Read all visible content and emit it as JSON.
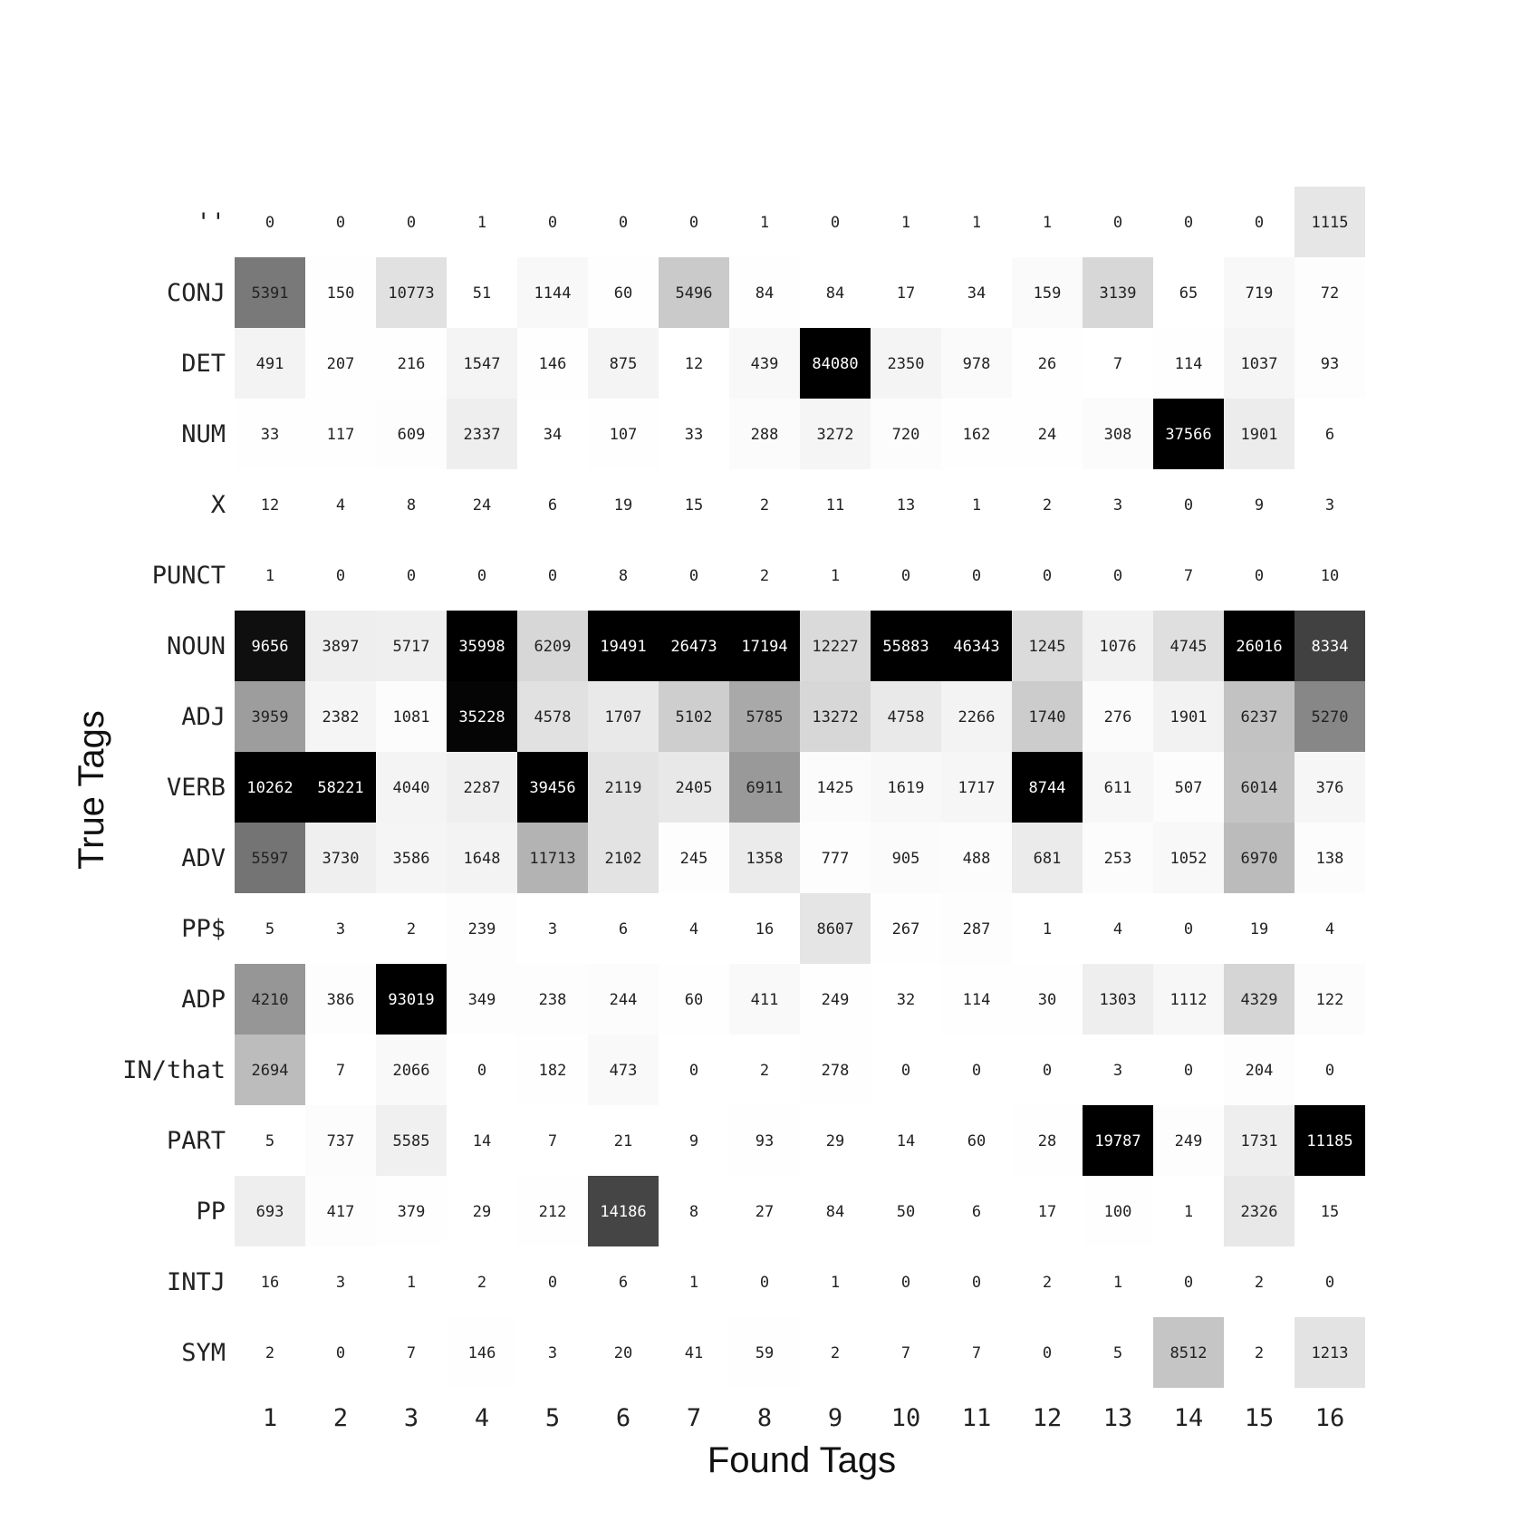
{
  "chart_data": {
    "type": "heatmap",
    "xlabel": "Found Tags",
    "ylabel": "True Tags",
    "x_categories": [
      "1",
      "2",
      "3",
      "4",
      "5",
      "6",
      "7",
      "8",
      "9",
      "10",
      "11",
      "12",
      "13",
      "14",
      "15",
      "16"
    ],
    "y_categories": [
      "''",
      "CONJ",
      "DET",
      "NUM",
      "X",
      "PUNCT",
      "NOUN",
      "ADJ",
      "VERB",
      "ADV",
      "PP$",
      "ADP",
      "IN/that",
      "PART",
      "PP",
      "INTJ",
      "SYM"
    ],
    "values": [
      [
        0,
        0,
        0,
        1,
        0,
        0,
        0,
        1,
        0,
        1,
        1,
        1,
        0,
        0,
        0,
        1115
      ],
      [
        5391,
        150,
        10773,
        51,
        1144,
        60,
        5496,
        84,
        84,
        17,
        34,
        159,
        3139,
        65,
        719,
        72
      ],
      [
        491,
        207,
        216,
        1547,
        146,
        875,
        12,
        439,
        84080,
        2350,
        978,
        26,
        7,
        114,
        1037,
        93
      ],
      [
        33,
        117,
        609,
        2337,
        34,
        107,
        33,
        288,
        3272,
        720,
        162,
        24,
        308,
        37566,
        1901,
        6
      ],
      [
        12,
        4,
        8,
        24,
        6,
        19,
        15,
        2,
        11,
        13,
        1,
        2,
        3,
        0,
        9,
        3
      ],
      [
        1,
        0,
        0,
        0,
        0,
        8,
        0,
        2,
        1,
        0,
        0,
        0,
        0,
        7,
        0,
        10
      ],
      [
        9656,
        3897,
        5717,
        35998,
        6209,
        19491,
        26473,
        17194,
        12227,
        55883,
        46343,
        1245,
        1076,
        4745,
        26016,
        8334
      ],
      [
        3959,
        2382,
        1081,
        35228,
        4578,
        1707,
        5102,
        5785,
        13272,
        4758,
        2266,
        1740,
        276,
        1901,
        6237,
        5270
      ],
      [
        10262,
        58221,
        4040,
        2287,
        39456,
        2119,
        2405,
        6911,
        1425,
        1619,
        1717,
        8744,
        611,
        507,
        6014,
        376
      ],
      [
        5597,
        3730,
        3586,
        1648,
        11713,
        2102,
        245,
        1358,
        777,
        905,
        488,
        681,
        253,
        1052,
        6970,
        138
      ],
      [
        5,
        3,
        2,
        239,
        3,
        6,
        4,
        16,
        8607,
        267,
        287,
        1,
        4,
        0,
        19,
        4
      ],
      [
        4210,
        386,
        93019,
        349,
        238,
        244,
        60,
        411,
        249,
        32,
        114,
        30,
        1303,
        1112,
        4329,
        122
      ],
      [
        2694,
        7,
        2066,
        0,
        182,
        473,
        0,
        2,
        278,
        0,
        0,
        0,
        3,
        0,
        204,
        0
      ],
      [
        5,
        737,
        5585,
        14,
        7,
        21,
        9,
        93,
        29,
        14,
        60,
        28,
        19787,
        249,
        1731,
        11185
      ],
      [
        693,
        417,
        379,
        29,
        212,
        14186,
        8,
        27,
        84,
        50,
        6,
        17,
        100,
        1,
        2326,
        15
      ],
      [
        16,
        3,
        1,
        2,
        0,
        6,
        1,
        0,
        1,
        0,
        0,
        2,
        1,
        0,
        2,
        0
      ],
      [
        2,
        0,
        7,
        146,
        3,
        20,
        41,
        59,
        2,
        7,
        7,
        0,
        5,
        8512,
        2,
        1213
      ]
    ],
    "colormap": "greys",
    "normalization": "column",
    "grid": false,
    "legend": "none"
  }
}
